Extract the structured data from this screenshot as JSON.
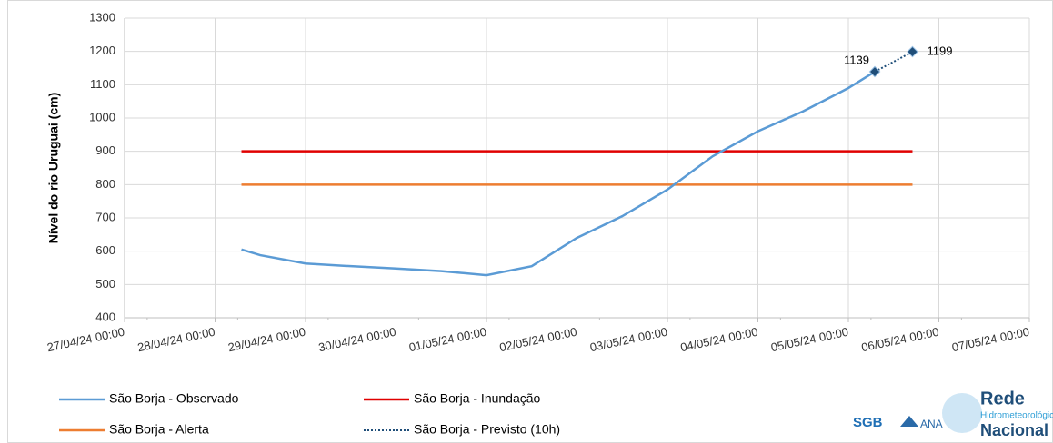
{
  "chart_data": {
    "type": "line",
    "ylabel": "Nível do rio Uruguai (cm)",
    "xlim": [
      "27/04/24 00:00",
      "07/05/24 00:00"
    ],
    "xticks": [
      "27/04/24 00:00",
      "28/04/24 00:00",
      "29/04/24 00:00",
      "30/04/24 00:00",
      "01/05/24 00:00",
      "02/05/24 00:00",
      "03/05/24 00:00",
      "04/05/24 00:00",
      "05/05/24 00:00",
      "06/05/24 00:00",
      "07/05/24 00:00"
    ],
    "ylim": [
      400,
      1300
    ],
    "yticks": [
      400,
      500,
      600,
      700,
      800,
      900,
      1000,
      1100,
      1200,
      1300
    ],
    "grid": true,
    "series": [
      {
        "name": "São Borja - Observado",
        "color": "#5b9bd5",
        "linestyle": "solid",
        "x": [
          "28/04/24 07:00",
          "28/04/24 12:00",
          "29/04/24 00:00",
          "29/04/24 12:00",
          "30/04/24 00:00",
          "30/04/24 12:00",
          "01/05/24 00:00",
          "01/05/24 12:00",
          "02/05/24 00:00",
          "02/05/24 12:00",
          "03/05/24 00:00",
          "03/05/24 12:00",
          "04/05/24 00:00",
          "04/05/24 12:00",
          "05/05/24 00:00",
          "05/05/24 07:00"
        ],
        "values": [
          605,
          588,
          563,
          555,
          548,
          540,
          528,
          555,
          640,
          705,
          785,
          885,
          960,
          1020,
          1090,
          1139
        ]
      },
      {
        "name": "São Borja - Inundação",
        "color": "#e00000",
        "linestyle": "solid",
        "x": [
          "28/04/24 07:00",
          "05/05/24 17:00"
        ],
        "values": [
          900,
          900
        ]
      },
      {
        "name": "São Borja - Alerta",
        "color": "#ed7d31",
        "linestyle": "solid",
        "x": [
          "28/04/24 07:00",
          "05/05/24 17:00"
        ],
        "values": [
          800,
          800
        ]
      },
      {
        "name": "São Borja - Previsto (10h)",
        "color": "#1f4e79",
        "linestyle": "dotted",
        "markers": true,
        "data_labels": true,
        "x": [
          "05/05/24 07:00",
          "05/05/24 17:00"
        ],
        "values": [
          1139,
          1199
        ]
      }
    ],
    "logos": [
      "SGB",
      "ANA",
      "Rede",
      "Hidrometeorológica",
      "Nacional"
    ]
  }
}
